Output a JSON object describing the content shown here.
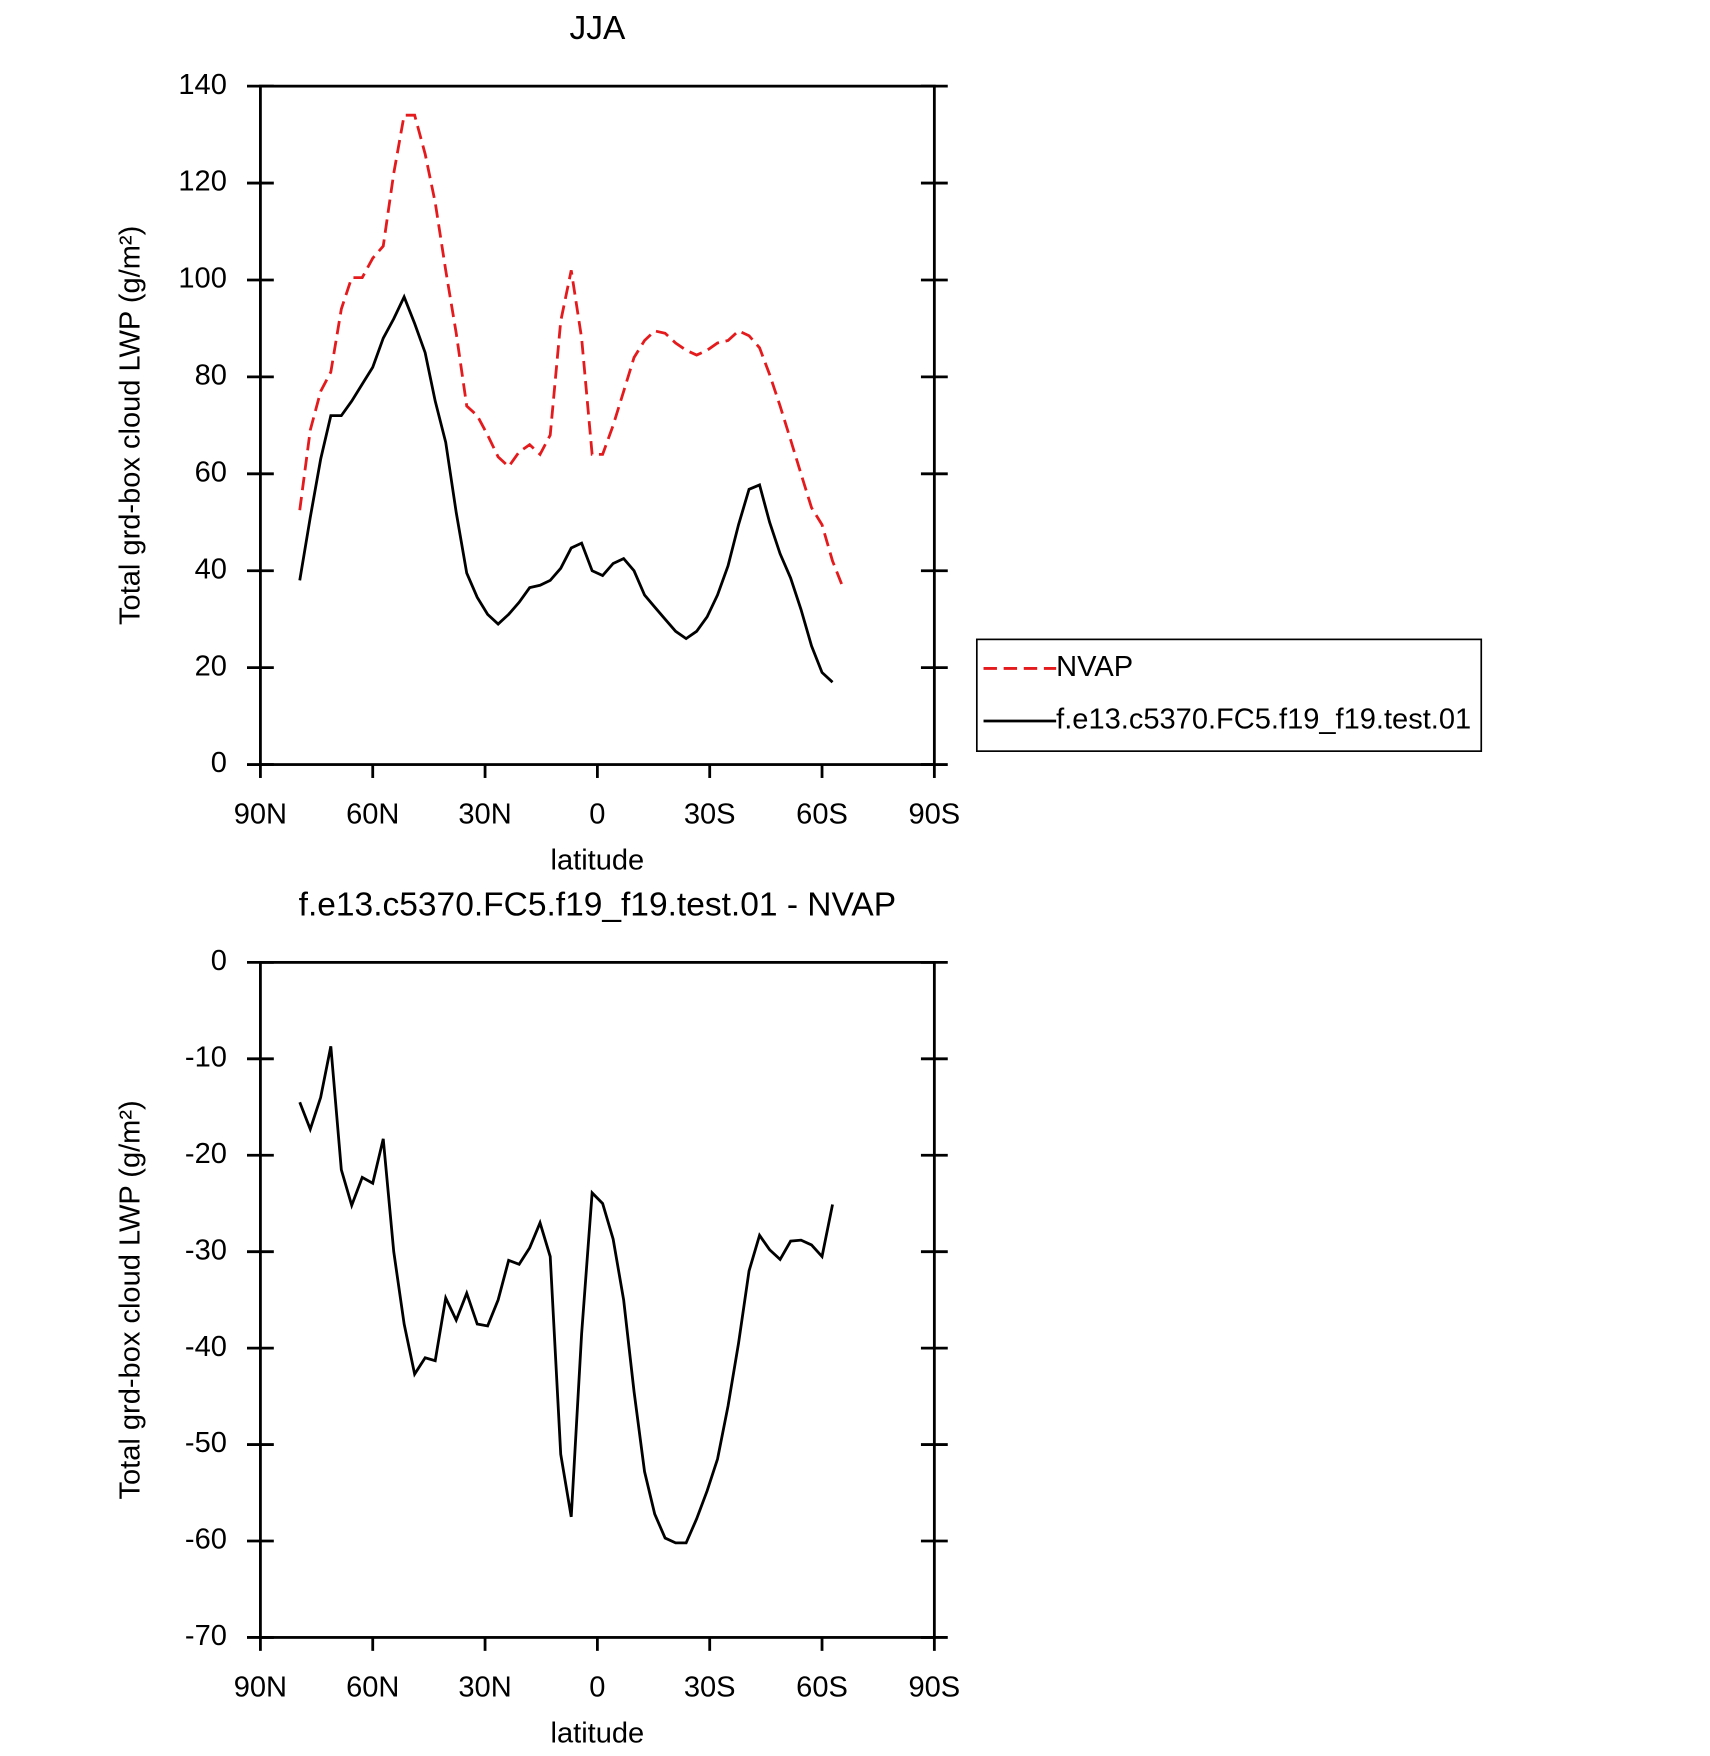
{
  "chart_data": [
    {
      "type": "line",
      "title": "JJA",
      "xlabel": "latitude",
      "ylabel": "Total grd-box cloud LWP (g/m²)",
      "xlim": [
        90,
        -90
      ],
      "xticks": [
        {
          "value": 90,
          "label": "90N"
        },
        {
          "value": 60,
          "label": "60N"
        },
        {
          "value": 30,
          "label": "30N"
        },
        0,
        {
          "value": -30,
          "label": "30S"
        },
        {
          "value": -60,
          "label": "60S"
        },
        {
          "value": -90,
          "label": "90S"
        }
      ],
      "ylim": [
        0,
        140
      ],
      "yticks": [
        0,
        20,
        40,
        60,
        80,
        100,
        120,
        140
      ],
      "legend": "right",
      "series": [
        {
          "name": "NVAP",
          "color": "#e41a1c",
          "line_style": "dashed",
          "x": [
            79.5,
            76.7,
            73.9,
            71.2,
            68.4,
            65.6,
            62.8,
            60.0,
            57.2,
            54.4,
            51.6,
            48.8,
            46.0,
            43.3,
            40.5,
            37.7,
            34.9,
            32.1,
            29.3,
            26.5,
            23.7,
            20.9,
            18.1,
            15.3,
            12.6,
            9.8,
            7.0,
            4.2,
            1.4,
            -1.4,
            -4.2,
            -7.0,
            -9.8,
            -12.6,
            -15.3,
            -18.1,
            -20.9,
            -23.7,
            -26.5,
            -29.3,
            -32.1,
            -34.9,
            -37.7,
            -40.5,
            -43.3,
            -46.0,
            -48.8,
            -51.6,
            -54.4,
            -57.2,
            -60.0,
            -62.8,
            -65.6
          ],
          "values": [
            52.5,
            69,
            77,
            81,
            94,
            100.5,
            100.5,
            104.5,
            107,
            122,
            134,
            134,
            126,
            116,
            102,
            89,
            74,
            72,
            68,
            63.5,
            61.5,
            64.5,
            66,
            64,
            68,
            91.5,
            102,
            88,
            64,
            64,
            70,
            77,
            84,
            87.5,
            89.5,
            89,
            87,
            85.5,
            84.5,
            85.5,
            87,
            87.5,
            89.5,
            88.5,
            86,
            80.5,
            74,
            67,
            60,
            53,
            49.5,
            42,
            36.5
          ]
        },
        {
          "name": "f.e13.c5370.FC5.f19_f19.test.01",
          "color": "#000000",
          "line_style": "solid",
          "x": [
            79.5,
            76.7,
            73.9,
            71.2,
            68.4,
            65.6,
            62.8,
            60.0,
            57.2,
            54.4,
            51.6,
            48.8,
            46.0,
            43.3,
            40.5,
            37.7,
            34.9,
            32.1,
            29.3,
            26.5,
            23.7,
            20.9,
            18.1,
            15.3,
            12.6,
            9.8,
            7.0,
            4.2,
            1.4,
            -1.4,
            -4.2,
            -7.0,
            -9.8,
            -12.6,
            -15.3,
            -18.1,
            -20.9,
            -23.7,
            -26.5,
            -29.3,
            -32.1,
            -34.9,
            -37.7,
            -40.5,
            -43.3,
            -46.0,
            -48.8,
            -51.6,
            -54.4,
            -57.2,
            -60.0,
            -62.8
          ],
          "values": [
            38,
            51,
            63,
            72,
            72,
            75,
            78.5,
            82,
            88,
            92,
            96.5,
            91,
            85,
            75,
            66.5,
            52,
            39.5,
            34.5,
            31,
            29,
            31,
            33.5,
            36.5,
            37,
            38,
            40.5,
            44.7,
            45.7,
            40,
            39,
            41.5,
            42.5,
            40,
            35,
            32.5,
            30,
            27.5,
            26,
            27.5,
            30.5,
            35,
            41,
            49.5,
            56.8,
            57.7,
            50,
            43.5,
            38.5,
            32,
            24.5,
            19,
            17
          ]
        }
      ]
    },
    {
      "type": "line",
      "title": "f.e13.c5370.FC5.f19_f19.test.01 - NVAP",
      "xlabel": "latitude",
      "ylabel": "Total grd-box cloud LWP (g/m²)",
      "xlim": [
        90,
        -90
      ],
      "xticks": [
        {
          "value": 90,
          "label": "90N"
        },
        {
          "value": 60,
          "label": "60N"
        },
        {
          "value": 30,
          "label": "30N"
        },
        0,
        {
          "value": -30,
          "label": "30S"
        },
        {
          "value": -60,
          "label": "60S"
        },
        {
          "value": -90,
          "label": "90S"
        }
      ],
      "ylim": [
        -70,
        0
      ],
      "yticks": [
        -70,
        -60,
        -50,
        -40,
        -30,
        -20,
        -10,
        0
      ],
      "series": [
        {
          "color": "#000000",
          "line_style": "solid",
          "x": [
            79.5,
            76.7,
            73.9,
            71.2,
            68.4,
            65.6,
            62.8,
            60.0,
            57.2,
            54.4,
            51.6,
            48.8,
            46.0,
            43.3,
            40.5,
            37.7,
            34.9,
            32.1,
            29.3,
            26.5,
            23.7,
            20.9,
            18.1,
            15.3,
            12.6,
            9.8,
            7.0,
            4.2,
            1.4,
            -1.4,
            -4.2,
            -7.0,
            -9.8,
            -12.6,
            -15.3,
            -18.1,
            -20.9,
            -23.7,
            -26.5,
            -29.3,
            -32.1,
            -34.9,
            -37.7,
            -40.5,
            -43.3,
            -46.0,
            -48.8,
            -51.6,
            -54.4,
            -57.2,
            -60.0,
            -62.8
          ],
          "values": [
            -14.5,
            -17.3,
            -14,
            -8.7,
            -21.5,
            -25.2,
            -22.3,
            -22.9,
            -18.3,
            -30,
            -37.5,
            -42.7,
            -41,
            -41.3,
            -34.8,
            -37.1,
            -34.3,
            -37.5,
            -37.7,
            -35,
            -30.9,
            -31.3,
            -29.6,
            -27,
            -30.5,
            -51,
            -57.5,
            -38.5,
            -23.9,
            -25,
            -28.7,
            -35,
            -44.5,
            -52.8,
            -57.2,
            -59.7,
            -60.2,
            -60.2,
            -57.7,
            -54.8,
            -51.5,
            -46,
            -39.5,
            -32,
            -28.3,
            -29.8,
            -30.8,
            -28.9,
            -28.8,
            -29.3,
            -30.5,
            -25.1
          ]
        }
      ]
    }
  ]
}
